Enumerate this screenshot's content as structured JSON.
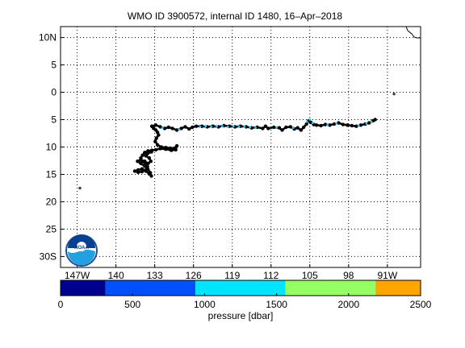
{
  "chart_data": {
    "type": "scatter",
    "title": "WMO ID 3900572, internal ID 1480, 16–Apr–2018",
    "xlabel": "",
    "ylabel": "",
    "grid": true,
    "xlim": [
      -150,
      -85
    ],
    "ylim": [
      -32,
      12
    ],
    "x_ticks": [
      {
        "value": -147,
        "label": "147W"
      },
      {
        "value": -140,
        "label": "140"
      },
      {
        "value": -133,
        "label": "133"
      },
      {
        "value": -126,
        "label": "126"
      },
      {
        "value": -119,
        "label": "119"
      },
      {
        "value": -112,
        "label": "112"
      },
      {
        "value": -105,
        "label": "105"
      },
      {
        "value": -98,
        "label": "98"
      },
      {
        "value": -91,
        "label": "91W"
      }
    ],
    "y_ticks": [
      {
        "value": 10,
        "label": "10N"
      },
      {
        "value": 5,
        "label": "5"
      },
      {
        "value": 0,
        "label": "0"
      },
      {
        "value": -5,
        "label": "5"
      },
      {
        "value": -10,
        "label": "10"
      },
      {
        "value": -15,
        "label": "15"
      },
      {
        "value": -20,
        "label": "20"
      },
      {
        "value": -25,
        "label": "25"
      },
      {
        "value": -30,
        "label": "30S"
      }
    ],
    "track": [
      [
        -133.5,
        -6.2
      ],
      [
        -133.2,
        -6.6
      ],
      [
        -132.8,
        -6.9
      ],
      [
        -132.5,
        -7.3
      ],
      [
        -132.3,
        -7.8
      ],
      [
        -132.7,
        -8.4
      ],
      [
        -132.9,
        -9.0
      ],
      [
        -132.5,
        -9.6
      ],
      [
        -131.8,
        -10.0
      ],
      [
        -131.0,
        -10.1
      ],
      [
        -130.2,
        -10.2
      ],
      [
        -129.4,
        -10.2
      ],
      [
        -129.0,
        -9.8
      ],
      [
        -129.2,
        -10.5
      ],
      [
        -130.0,
        -10.6
      ],
      [
        -131.0,
        -10.4
      ],
      [
        -132.0,
        -10.3
      ],
      [
        -132.8,
        -10.5
      ],
      [
        -133.5,
        -10.6
      ],
      [
        -134.2,
        -10.7
      ],
      [
        -134.8,
        -11.0
      ],
      [
        -135.2,
        -11.5
      ],
      [
        -135.5,
        -12.0
      ],
      [
        -135.3,
        -12.6
      ],
      [
        -134.7,
        -13.0
      ],
      [
        -134.3,
        -13.6
      ],
      [
        -134.6,
        -14.2
      ],
      [
        -135.3,
        -14.5
      ],
      [
        -136.0,
        -14.6
      ],
      [
        -136.6,
        -14.4
      ],
      [
        -136.0,
        -14.2
      ],
      [
        -135.3,
        -14.0
      ],
      [
        -134.6,
        -14.4
      ],
      [
        -134.0,
        -14.9
      ],
      [
        -133.6,
        -15.3
      ],
      [
        -133.8,
        -14.7
      ],
      [
        -134.2,
        -14.1
      ],
      [
        -134.8,
        -13.5
      ],
      [
        -135.5,
        -13.0
      ],
      [
        -136.1,
        -12.6
      ],
      [
        -135.5,
        -12.3
      ],
      [
        -134.8,
        -12.6
      ],
      [
        -134.2,
        -13.0
      ],
      [
        -133.7,
        -12.6
      ],
      [
        -134.0,
        -12.0
      ],
      [
        -134.6,
        -11.6
      ],
      [
        -134.3,
        -11.2
      ],
      [
        -133.6,
        -10.9
      ]
    ],
    "track2": [
      [
        -133.5,
        -6.2
      ],
      [
        -132.8,
        -6.0
      ],
      [
        -132.0,
        -6.3
      ],
      [
        -131.2,
        -6.6
      ],
      [
        -130.5,
        -6.4
      ],
      [
        -129.8,
        -6.6
      ],
      [
        -129.0,
        -6.9
      ],
      [
        -128.2,
        -6.6
      ],
      [
        -127.5,
        -6.3
      ],
      [
        -126.8,
        -6.7
      ],
      [
        -126.2,
        -6.4
      ],
      [
        -125.5,
        -6.2
      ],
      [
        -124.5,
        -6.2
      ],
      [
        -123.5,
        -6.3
      ],
      [
        -122.5,
        -6.2
      ],
      [
        -121.5,
        -6.3
      ],
      [
        -120.5,
        -6.1
      ],
      [
        -119.5,
        -6.2
      ],
      [
        -118.5,
        -6.3
      ],
      [
        -117.5,
        -6.2
      ],
      [
        -116.5,
        -6.3
      ],
      [
        -115.5,
        -6.5
      ],
      [
        -114.5,
        -6.4
      ],
      [
        -113.5,
        -6.6
      ],
      [
        -113.0,
        -6.2
      ],
      [
        -112.5,
        -6.6
      ],
      [
        -111.5,
        -6.4
      ],
      [
        -110.5,
        -6.5
      ],
      [
        -110.0,
        -6.9
      ],
      [
        -109.3,
        -6.4
      ],
      [
        -108.5,
        -6.3
      ],
      [
        -107.8,
        -6.7
      ],
      [
        -107.2,
        -6.5
      ],
      [
        -106.6,
        -6.9
      ],
      [
        -106.1,
        -6.4
      ],
      [
        -105.6,
        -5.8
      ],
      [
        -105.2,
        -5.2
      ],
      [
        -104.8,
        -5.5
      ],
      [
        -104.3,
        -5.9
      ],
      [
        -103.8,
        -6.0
      ],
      [
        -103.0,
        -6.1
      ],
      [
        -102.2,
        -5.9
      ],
      [
        -101.4,
        -6.0
      ],
      [
        -100.6,
        -5.8
      ],
      [
        -99.8,
        -5.6
      ],
      [
        -99.0,
        -5.9
      ],
      [
        -98.2,
        -6.0
      ],
      [
        -97.4,
        -6.1
      ],
      [
        -96.6,
        -6.2
      ],
      [
        -95.8,
        -6.0
      ],
      [
        -95.0,
        -5.8
      ],
      [
        -94.3,
        -5.6
      ],
      [
        -93.6,
        -5.2
      ],
      [
        -93.2,
        -5.0
      ]
    ],
    "cyan_points": [
      [
        -124.8,
        -6.3
      ],
      [
        -123.8,
        -6.2
      ],
      [
        -122.8,
        -6.3
      ],
      [
        -121.8,
        -6.2
      ],
      [
        -120.8,
        -6.2
      ],
      [
        -119.8,
        -6.3
      ],
      [
        -118.8,
        -6.2
      ],
      [
        -117.8,
        -6.3
      ],
      [
        -116.8,
        -6.3
      ],
      [
        -115.8,
        -6.4
      ],
      [
        -114.8,
        -6.5
      ],
      [
        -105.5,
        -5.4
      ],
      [
        -105.0,
        -5.0
      ],
      [
        -104.5,
        -5.6
      ],
      [
        -101.8,
        -6.0
      ],
      [
        -100.2,
        -5.7
      ],
      [
        -96.2,
        -6.1
      ],
      [
        -94.8,
        -5.7
      ],
      [
        -93.9,
        -5.4
      ],
      [
        -131.6,
        -6.5
      ],
      [
        -128.6,
        -6.8
      ],
      [
        -111.0,
        -6.4
      ],
      [
        -108.0,
        -6.5
      ]
    ],
    "stray_points": [
      [
        -146.5,
        -17.5
      ],
      [
        -89.8,
        -0.3
      ]
    ],
    "colorbar": {
      "label": "pressure [dbar]",
      "ticks": [
        0,
        500,
        1000,
        1500,
        2000,
        2500
      ],
      "bands": [
        {
          "from": 0,
          "to": 312,
          "color": "#00008f"
        },
        {
          "from": 312,
          "to": 937,
          "color": "#0050ff"
        },
        {
          "from": 937,
          "to": 1562,
          "color": "#00e5ff"
        },
        {
          "from": 1562,
          "to": 2187,
          "color": "#96ff64"
        },
        {
          "from": 2187,
          "to": 2500,
          "color": "#ffa500"
        }
      ]
    }
  },
  "colors": {
    "grid": "#000000",
    "track": "#000000",
    "highlight": "#1ec8ff"
  },
  "logo": {
    "text": "NOAA"
  }
}
